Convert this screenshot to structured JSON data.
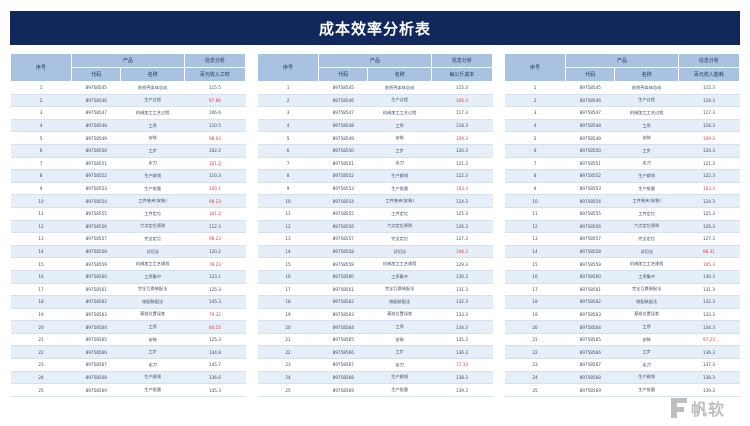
{
  "title": "成本效率分析表",
  "colors": {
    "banner": "#11285c",
    "header": "#a9c2e2",
    "stripe": "#e6eef8",
    "highlight": "#e43a3a"
  },
  "panels": [
    {
      "headers": {
        "seq": "序号",
        "product": "产品",
        "analysis": "信息分析",
        "code": "代码",
        "name": "名称",
        "metric": "百元收入工时"
      },
      "rows": [
        {
          "seq": "1",
          "code": "89758545",
          "name": "前桥壳本体总成",
          "value": "115.5",
          "red": false
        },
        {
          "seq": "2",
          "code": "89758546",
          "name": "生产过程",
          "value": "97.89",
          "red": true
        },
        {
          "seq": "3",
          "code": "89758547",
          "name": "机械加工工艺过程",
          "value": "106.6",
          "red": false
        },
        {
          "seq": "4",
          "code": "89758548",
          "name": "工序",
          "value": "110.5",
          "red": false
        },
        {
          "seq": "5",
          "code": "89758549",
          "name": "安装",
          "value": "98.03",
          "red": true
        },
        {
          "seq": "6",
          "code": "89758550",
          "name": "工步",
          "value": "102.2",
          "red": false
        },
        {
          "seq": "7",
          "code": "89758551",
          "name": "走刀",
          "value": "101.2",
          "red": true
        },
        {
          "seq": "8",
          "code": "89758552",
          "name": "生产纲领",
          "value": "110.3",
          "red": false
        },
        {
          "seq": "9",
          "code": "89758553",
          "name": "生产批量",
          "value": "100.1",
          "red": true
        },
        {
          "seq": "10",
          "code": "89758554",
          "name": "工件装夹(安装)",
          "value": "98.23",
          "red": true
        },
        {
          "seq": "11",
          "code": "89758555",
          "name": "工件定位",
          "value": "101.2",
          "red": true
        },
        {
          "seq": "12",
          "code": "89758556",
          "name": "六点定位原则",
          "value": "112.3",
          "red": false
        },
        {
          "seq": "13",
          "code": "89758557",
          "name": "完全定位",
          "value": "98.23",
          "red": true
        },
        {
          "seq": "14",
          "code": "89758558",
          "name": "试切法",
          "value": "120.2",
          "red": false
        },
        {
          "seq": "15",
          "code": "89758559",
          "name": "机械加工工艺规程",
          "value": "78.23",
          "red": true
        },
        {
          "seq": "16",
          "code": "89758560",
          "name": "工序集中",
          "value": "123.1",
          "red": false
        },
        {
          "seq": "17",
          "code": "89758561",
          "name": "完全互换装配法",
          "value": "125.3",
          "red": false
        },
        {
          "seq": "18",
          "code": "89758562",
          "name": "修配装配法",
          "value": "145.3",
          "red": false
        },
        {
          "seq": "19",
          "code": "89758563",
          "name": "基准位置误差",
          "value": "79.32",
          "red": true
        },
        {
          "seq": "20",
          "code": "89758564",
          "name": "工序",
          "value": "84.15",
          "red": true
        },
        {
          "seq": "21",
          "code": "89758565",
          "name": "安装",
          "value": "125.3",
          "red": false
        },
        {
          "seq": "22",
          "code": "89758566",
          "name": "工步",
          "value": "144.8",
          "red": false
        },
        {
          "seq": "23",
          "code": "89758567",
          "name": "走刀",
          "value": "145.7",
          "red": false
        },
        {
          "seq": "24",
          "code": "89758568",
          "name": "生产纲领",
          "value": "136.6",
          "red": false
        },
        {
          "seq": "25",
          "code": "89758569",
          "name": "生产批量",
          "value": "145.3",
          "red": false
        }
      ]
    },
    {
      "headers": {
        "seq": "序号",
        "product": "产品",
        "analysis": "信息分析",
        "code": "代码",
        "name": "名称",
        "metric": "每公斤成本"
      },
      "rows": [
        {
          "seq": "1",
          "code": "89758545",
          "name": "前桥壳本体总成",
          "value": "115.3",
          "red": false
        },
        {
          "seq": "2",
          "code": "89758546",
          "name": "生产过程",
          "value": "106.3",
          "red": true
        },
        {
          "seq": "3",
          "code": "89758547",
          "name": "机械加工工艺过程",
          "value": "117.3",
          "red": false
        },
        {
          "seq": "4",
          "code": "89758548",
          "name": "工序",
          "value": "118.3",
          "red": false
        },
        {
          "seq": "5",
          "code": "89758549",
          "name": "安装",
          "value": "109.3",
          "red": true
        },
        {
          "seq": "6",
          "code": "89758550",
          "name": "工步",
          "value": "120.3",
          "red": false
        },
        {
          "seq": "7",
          "code": "89758551",
          "name": "走刀",
          "value": "121.3",
          "red": false
        },
        {
          "seq": "8",
          "code": "89758552",
          "name": "生产纲领",
          "value": "122.3",
          "red": false
        },
        {
          "seq": "9",
          "code": "89758553",
          "name": "生产批量",
          "value": "103.3",
          "red": true
        },
        {
          "seq": "10",
          "code": "89758554",
          "name": "工件装夹(安装)",
          "value": "124.3",
          "red": false
        },
        {
          "seq": "11",
          "code": "89758555",
          "name": "工件定位",
          "value": "125.3",
          "red": false
        },
        {
          "seq": "12",
          "code": "89758556",
          "name": "六点定位原则",
          "value": "126.3",
          "red": false
        },
        {
          "seq": "13",
          "code": "89758557",
          "name": "完全定位",
          "value": "127.3",
          "red": false
        },
        {
          "seq": "14",
          "code": "89758558",
          "name": "试切法",
          "value": "108.3",
          "red": true
        },
        {
          "seq": "15",
          "code": "89758559",
          "name": "机械加工工艺规程",
          "value": "129.3",
          "red": false
        },
        {
          "seq": "16",
          "code": "89758560",
          "name": "工序集中",
          "value": "130.3",
          "red": false
        },
        {
          "seq": "17",
          "code": "89758561",
          "name": "完全互换装配法",
          "value": "131.3",
          "red": false
        },
        {
          "seq": "18",
          "code": "89758562",
          "name": "修配装配法",
          "value": "132.3",
          "red": false
        },
        {
          "seq": "19",
          "code": "89758563",
          "name": "基准位置误差",
          "value": "133.3",
          "red": false
        },
        {
          "seq": "20",
          "code": "89758564",
          "name": "工序",
          "value": "134.3",
          "red": false
        },
        {
          "seq": "21",
          "code": "89758565",
          "name": "安装",
          "value": "135.3",
          "red": false
        },
        {
          "seq": "22",
          "code": "89758566",
          "name": "工步",
          "value": "136.3",
          "red": false
        },
        {
          "seq": "23",
          "code": "89758567",
          "name": "走刀",
          "value": "77.33",
          "red": true
        },
        {
          "seq": "24",
          "code": "89758568",
          "name": "生产纲领",
          "value": "138.3",
          "red": false
        },
        {
          "seq": "25",
          "code": "89758569",
          "name": "生产批量",
          "value": "139.3",
          "red": false
        }
      ]
    },
    {
      "headers": {
        "seq": "序号",
        "product": "产品",
        "analysis": "信息分析",
        "code": "代码",
        "name": "名称",
        "metric": "百元收入能耗"
      },
      "rows": [
        {
          "seq": "1",
          "code": "89758545",
          "name": "前桥壳本体总成",
          "value": "115.3",
          "red": false
        },
        {
          "seq": "2",
          "code": "89758546",
          "name": "生产过程",
          "value": "116.3",
          "red": false
        },
        {
          "seq": "3",
          "code": "89758547",
          "name": "机械加工工艺过程",
          "value": "117.3",
          "red": false
        },
        {
          "seq": "4",
          "code": "89758548",
          "name": "工序",
          "value": "118.3",
          "red": false
        },
        {
          "seq": "5",
          "code": "89758549",
          "name": "安装",
          "value": "109.3",
          "red": true
        },
        {
          "seq": "6",
          "code": "89758550",
          "name": "工步",
          "value": "120.3",
          "red": false
        },
        {
          "seq": "7",
          "code": "89758551",
          "name": "走刀",
          "value": "121.3",
          "red": false
        },
        {
          "seq": "8",
          "code": "89758552",
          "name": "生产纲领",
          "value": "122.3",
          "red": false
        },
        {
          "seq": "9",
          "code": "89758553",
          "name": "生产批量",
          "value": "103.3",
          "red": true
        },
        {
          "seq": "10",
          "code": "89758554",
          "name": "工件装夹(安装)",
          "value": "124.3",
          "red": false
        },
        {
          "seq": "11",
          "code": "89758555",
          "name": "工件定位",
          "value": "125.3",
          "red": false
        },
        {
          "seq": "12",
          "code": "89758556",
          "name": "六点定位原则",
          "value": "126.3",
          "red": false
        },
        {
          "seq": "13",
          "code": "89758557",
          "name": "完全定位",
          "value": "127.3",
          "red": false
        },
        {
          "seq": "14",
          "code": "89758558",
          "name": "试切法",
          "value": "88.31",
          "red": true
        },
        {
          "seq": "15",
          "code": "89758559",
          "name": "机械加工工艺规程",
          "value": "105.3",
          "red": true
        },
        {
          "seq": "16",
          "code": "89758560",
          "name": "工序集中",
          "value": "130.3",
          "red": false
        },
        {
          "seq": "17",
          "code": "89758561",
          "name": "完全互换装配法",
          "value": "131.3",
          "red": false
        },
        {
          "seq": "18",
          "code": "89758562",
          "name": "修配装配法",
          "value": "132.3",
          "red": false
        },
        {
          "seq": "19",
          "code": "89758563",
          "name": "基准位置误差",
          "value": "133.3",
          "red": false
        },
        {
          "seq": "20",
          "code": "89758564",
          "name": "工序",
          "value": "134.3",
          "red": false
        },
        {
          "seq": "21",
          "code": "89758565",
          "name": "安装",
          "value": "97.23",
          "red": true
        },
        {
          "seq": "22",
          "code": "89758566",
          "name": "工步",
          "value": "136.3",
          "red": false
        },
        {
          "seq": "23",
          "code": "89758567",
          "name": "走刀",
          "value": "137.3",
          "red": false
        },
        {
          "seq": "24",
          "code": "89758568",
          "name": "生产纲领",
          "value": "138.3",
          "red": false
        },
        {
          "seq": "25",
          "code": "89758569",
          "name": "生产批量",
          "value": "139.3",
          "red": false
        }
      ]
    }
  ],
  "watermark": {
    "text": "帆软",
    "icon": "fanruan-logo-icon"
  }
}
